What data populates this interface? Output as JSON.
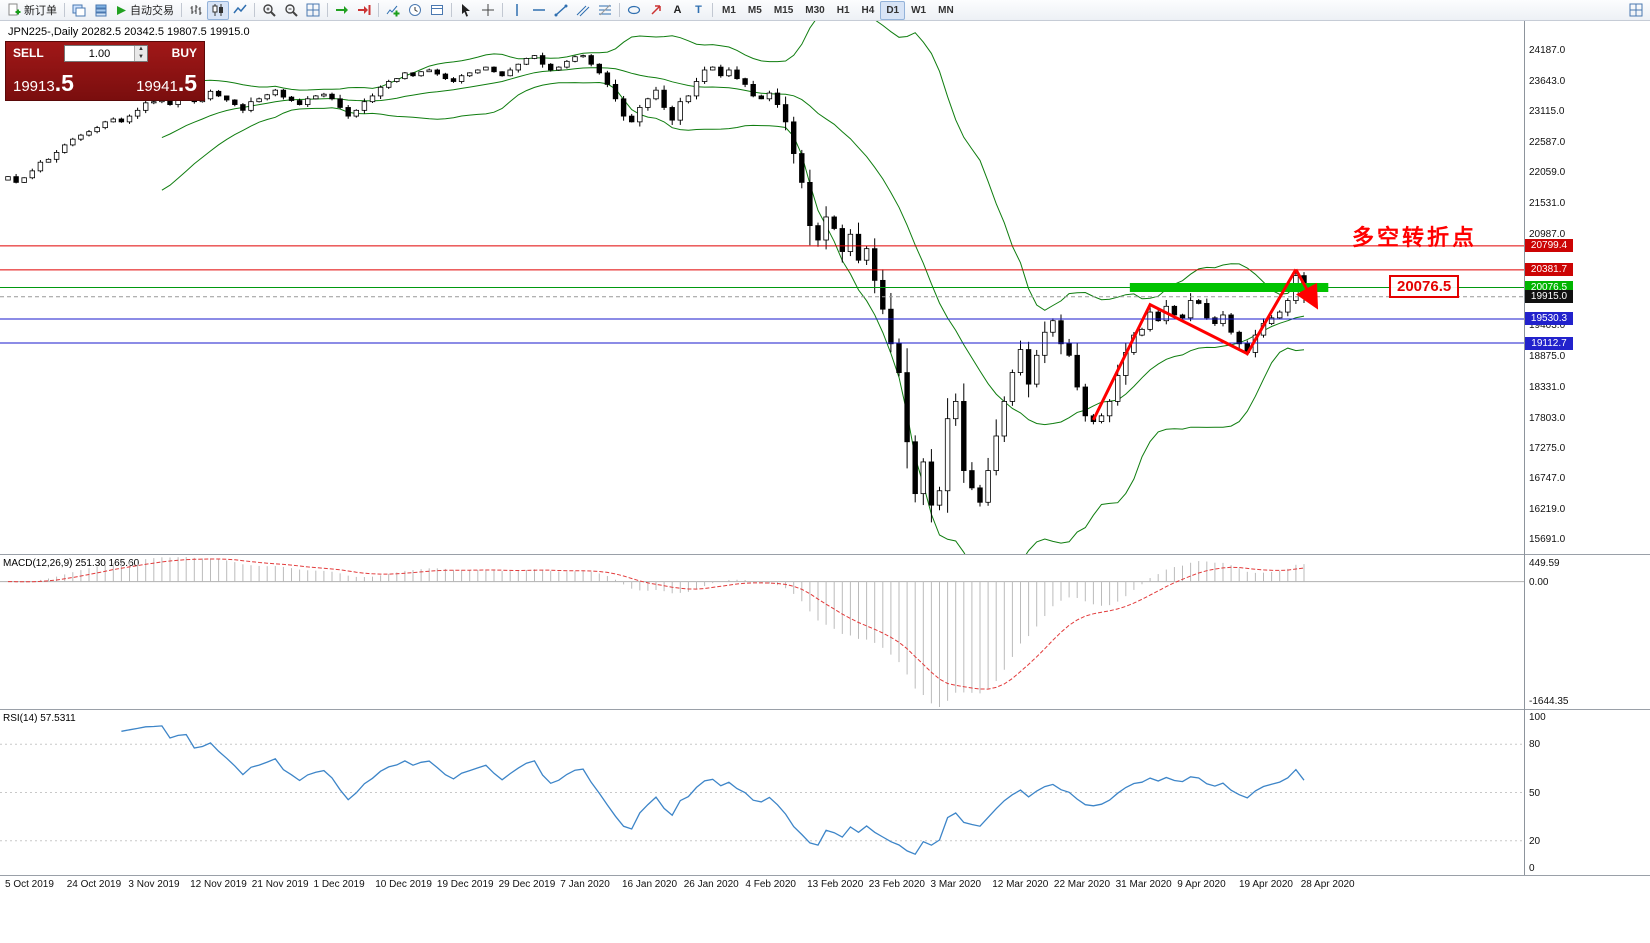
{
  "toolbar": {
    "items": [
      {
        "name": "new-order-button",
        "glyph": "doc-plus",
        "label": "新订单"
      },
      {
        "sep": true
      },
      {
        "name": "charts-window-button",
        "glyph": "window"
      },
      {
        "name": "profiles-button",
        "glyph": "layers"
      },
      {
        "name": "autotrading-button",
        "glyph": "play",
        "label": "自动交易"
      },
      {
        "sep": true
      },
      {
        "name": "bar-chart-button",
        "glyph": "bars"
      },
      {
        "name": "candlestick-chart-button",
        "glyph": "candles",
        "active": true
      },
      {
        "name": "line-chart-button",
        "glyph": "line"
      },
      {
        "sep": true
      },
      {
        "name": "zoom-in-button",
        "glyph": "zoom-in"
      },
      {
        "name": "zoom-out-button",
        "glyph": "zoom-out"
      },
      {
        "name": "tile-windows-button",
        "glyph": "tile"
      },
      {
        "sep": true
      },
      {
        "name": "auto-scroll-button",
        "glyph": "autoscroll"
      },
      {
        "name": "chart-shift-button",
        "glyph": "shift"
      },
      {
        "sep": true
      },
      {
        "name": "indicators-button",
        "glyph": "indicator-plus"
      },
      {
        "name": "periods-button",
        "glyph": "clock"
      },
      {
        "name": "templates-button",
        "glyph": "template"
      },
      {
        "sep": true
      },
      {
        "name": "cursor-button",
        "glyph": "cursor"
      },
      {
        "name": "crosshair-button",
        "glyph": "crosshair"
      },
      {
        "sep": true
      },
      {
        "name": "vertical-line-button",
        "glyph": "vline"
      },
      {
        "name": "horizontal-line-button",
        "glyph": "hline"
      },
      {
        "name": "trendline-button",
        "glyph": "trend"
      },
      {
        "name": "channel-button",
        "glyph": "channel"
      },
      {
        "name": "fibonacci-button",
        "glyph": "fibo"
      },
      {
        "sep": true
      },
      {
        "name": "shapes-button",
        "glyph": "ellipse"
      },
      {
        "name": "arrows-button",
        "glyph": "arrow-ne"
      },
      {
        "name": "text-button",
        "glyph": "text-a"
      },
      {
        "name": "text-label-button",
        "glyph": "text-t"
      },
      {
        "sep": true
      }
    ],
    "timeframes": [
      {
        "label": "M1"
      },
      {
        "label": "M5"
      },
      {
        "label": "M15"
      },
      {
        "label": "M30"
      },
      {
        "label": "H1"
      },
      {
        "label": "H4"
      },
      {
        "label": "D1",
        "active": true
      },
      {
        "label": "W1"
      },
      {
        "label": "MN"
      }
    ]
  },
  "trade_panel": {
    "sell_label": "SELL",
    "buy_label": "BUY",
    "volume": "1.00",
    "sell_price": "19913.5",
    "buy_price": "19941.5"
  },
  "annotations": {
    "turning_point": "多空转折点",
    "level_label": "20076.5"
  },
  "chart_data": {
    "type": "candlestick",
    "title": "JPN225-,Daily 20282.5 20342.5 19807.5 19915.0",
    "symbol": "JPN225-",
    "period": "Daily",
    "last_candle": {
      "open": 20282.5,
      "high": 20342.5,
      "low": 19807.5,
      "close": 19915.0
    },
    "closes": [
      22000,
      21900,
      21980,
      22100,
      22250,
      22300,
      22420,
      22550,
      22650,
      22720,
      22780,
      22850,
      22950,
      23000,
      22950,
      23050,
      23150,
      23280,
      23300,
      23350,
      23250,
      23380,
      23420,
      23300,
      23350,
      23480,
      23400,
      23330,
      23250,
      23150,
      23300,
      23350,
      23420,
      23500,
      23380,
      23320,
      23250,
      23350,
      23400,
      23430,
      23350,
      23200,
      23050,
      23150,
      23300,
      23400,
      23550,
      23650,
      23700,
      23800,
      23750,
      23820,
      23850,
      23780,
      23700,
      23650,
      23750,
      23800,
      23850,
      23900,
      23820,
      23750,
      23850,
      23950,
      24050,
      24100,
      23950,
      23850,
      23900,
      24000,
      24080,
      24100,
      23950,
      23800,
      23600,
      23350,
      23050,
      22950,
      23200,
      23350,
      23500,
      23200,
      22980,
      23300,
      23400,
      23650,
      23850,
      23900,
      23750,
      23850,
      23700,
      23600,
      23400,
      23350,
      23450,
      23250,
      22950,
      22400,
      21900,
      21150,
      20900,
      21300,
      21100,
      20700,
      21000,
      20550,
      20750,
      20200,
      19700,
      19100,
      18600,
      17400,
      16500,
      17050,
      16300,
      16550,
      17800,
      18100,
      16900,
      16600,
      16350,
      16900,
      17500,
      18100,
      18600,
      19000,
      18400,
      18900,
      19300,
      19500,
      19100,
      18900,
      18350,
      17850,
      17750,
      17850,
      18100,
      18550,
      18950,
      19250,
      19350,
      19650,
      19500,
      19750,
      19600,
      19550,
      19850,
      19800,
      19550,
      19450,
      19600,
      19300,
      19100,
      18950,
      19250,
      19450,
      19550,
      19650,
      19850,
      20282.5,
      19915
    ],
    "bollinger": {
      "period": 20,
      "deviation": 2,
      "color": "#0f7d0f"
    },
    "price_axis": {
      "ticks": [
        {
          "value": 24187.0,
          "label": "24187.0"
        },
        {
          "value": 23643.0,
          "label": "23643.0"
        },
        {
          "value": 23115.0,
          "label": "23115.0"
        },
        {
          "value": 22587.0,
          "label": "22587.0"
        },
        {
          "value": 22059.0,
          "label": "22059.0"
        },
        {
          "value": 21531.0,
          "label": "21531.0"
        },
        {
          "value": 20987.0,
          "label": "20987.0"
        },
        {
          "value": 19403.0,
          "label": "19403.0"
        },
        {
          "value": 18875.0,
          "label": "18875.0"
        },
        {
          "value": 18331.0,
          "label": "18331.0"
        },
        {
          "value": 17803.0,
          "label": "17803.0"
        },
        {
          "value": 17275.0,
          "label": "17275.0"
        },
        {
          "value": 16747.0,
          "label": "16747.0"
        },
        {
          "value": 16219.0,
          "label": "16219.0"
        },
        {
          "value": 15691.0,
          "label": "15691.0"
        }
      ]
    },
    "hlines": [
      {
        "name": "resistance-line-20799",
        "price": 20799.4,
        "color": "#e00000",
        "badge_bg": "#cc0404",
        "label": "20799.4"
      },
      {
        "name": "resistance-line-20381",
        "price": 20381.7,
        "color": "#e00000",
        "badge_bg": "#cc0404",
        "label": "20381.7"
      },
      {
        "name": "key-level-line-20076",
        "price": 20076.5,
        "color": "#009910",
        "badge_bg": "#00b400",
        "label": "20076.5"
      },
      {
        "name": "support-line-19530",
        "price": 19530.3,
        "color": "#1a1acd",
        "badge_bg": "#2222cc",
        "label": "19530.3"
      },
      {
        "name": "support-line-19112",
        "price": 19112.7,
        "color": "#1a1acd",
        "badge_bg": "#2222cc",
        "label": "19112.7"
      }
    ],
    "current_price": {
      "value": 19915.0,
      "label": "19915.0",
      "badge_bg": "#101010"
    },
    "zone": {
      "price": 20076.5,
      "from_index": 138.5,
      "to_index": 163,
      "color": "#00c300"
    },
    "trend": {
      "color": "#ff0000",
      "points": [
        [
          134,
          17780
        ],
        [
          141,
          19780
        ],
        [
          153,
          18930
        ],
        [
          159,
          20390
        ]
      ],
      "arrow": [
        [
          159,
          20390
        ],
        [
          161.2,
          19830
        ]
      ]
    },
    "macd": {
      "label": "MACD(12,26,9) 251.30 165.60",
      "fast": 12,
      "slow": 26,
      "signal": 9,
      "axis_labels": [
        "449.59",
        "0.00",
        "-1644.35"
      ],
      "histogram_color": "#bbbbbb",
      "signal_color": "#e23b3b"
    },
    "rsi": {
      "label": "RSI(14) 57.5311",
      "period": 14,
      "value": 57.5311,
      "level_labels": [
        "100",
        "80",
        "50",
        "20",
        "0"
      ],
      "levels": [
        100,
        80,
        50,
        20,
        0
      ],
      "line_color": "#3d85c8"
    },
    "dates": [
      "5 Oct 2019",
      "24 Oct 2019",
      "3 Nov 2019",
      "12 Nov 2019",
      "21 Nov 2019",
      "1 Dec 2019",
      "10 Dec 2019",
      "19 Dec 2019",
      "29 Dec 2019",
      "7 Jan 2020",
      "16 Jan 2020",
      "26 Jan 2020",
      "4 Feb 2020",
      "13 Feb 2020",
      "23 Feb 2020",
      "3 Mar 2020",
      "12 Mar 2020",
      "22 Mar 2020",
      "31 Mar 2020",
      "9 Apr 2020",
      "19 Apr 2020",
      "28 Apr 2020"
    ]
  }
}
